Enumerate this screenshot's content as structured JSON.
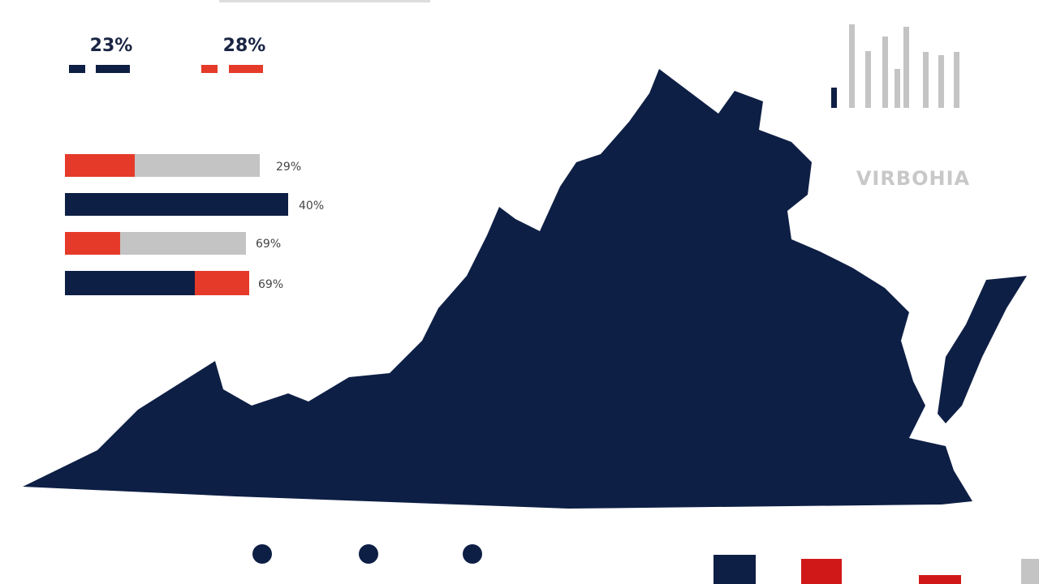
{
  "stats": [
    {
      "label": "23%"
    },
    {
      "label": "28%"
    }
  ],
  "bars": [
    {
      "label": "29%"
    },
    {
      "label": "40%"
    },
    {
      "label": "69%"
    },
    {
      "label": "69%"
    }
  ],
  "map": {
    "title": "VIRBOHIA"
  }
}
